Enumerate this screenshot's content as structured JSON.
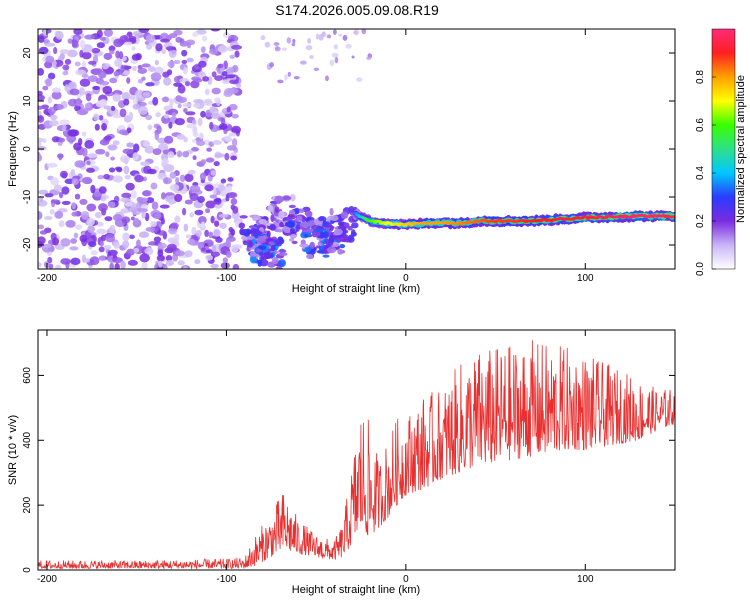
{
  "title": "S174.2026.005.09.08.R19",
  "chart_data": [
    {
      "type": "heatmap",
      "xlabel": "Height of straight line (km)",
      "ylabel": "Frequency (Hz)",
      "xlim": [
        -205,
        150
      ],
      "ylim": [
        -25,
        25
      ],
      "xticks": [
        -200,
        -100,
        0,
        100
      ],
      "yticks": [
        -20,
        -10,
        0,
        10,
        20
      ],
      "colorbar": {
        "label": "Normalized spectral amplitude",
        "range": [
          0,
          1
        ],
        "ticks": [
          "0.0",
          "0.2",
          "0.4",
          "0.6",
          "0.8"
        ],
        "tick_values": [
          0,
          0.2,
          0.4,
          0.6,
          0.8
        ],
        "colors": [
          "#ffffff",
          "#c9b5f5",
          "#7a2be0",
          "#2a3cff",
          "#00c8ff",
          "#2ee08a",
          "#38ff00",
          "#ffff00",
          "#ffa000",
          "#ff2020",
          "#ff2a7a"
        ]
      },
      "noise_region_x": [
        -205,
        -93
      ],
      "features": [
        {
          "x": -85,
          "y": -17.5,
          "amp": 0.25
        },
        {
          "x": -80,
          "y": -20,
          "amp": 0.3
        },
        {
          "x": -75,
          "y": -22,
          "amp": 0.3
        },
        {
          "x": -70,
          "y": -13.5,
          "amp": 0.2
        },
        {
          "x": -60,
          "y": -16,
          "amp": 0.25
        },
        {
          "x": -50,
          "y": -19,
          "amp": 0.3
        },
        {
          "x": -42,
          "y": -18,
          "amp": 0.28
        },
        {
          "x": -35,
          "y": -16,
          "amp": 0.25
        }
      ],
      "ridge": {
        "x": [
          -28,
          -20,
          -10,
          0,
          10,
          20,
          30,
          40,
          50,
          60,
          70,
          80,
          90,
          100,
          110,
          120,
          130,
          140,
          150
        ],
        "y": [
          -13.5,
          -15,
          -15.5,
          -15.8,
          -15.5,
          -15.3,
          -15.5,
          -15,
          -15,
          -15,
          -15,
          -14.8,
          -14.5,
          -14.3,
          -14.2,
          -14.1,
          -14,
          -14,
          -14
        ],
        "amp": [
          0.35,
          0.6,
          0.7,
          0.75,
          0.8,
          0.8,
          0.82,
          0.85,
          0.88,
          0.88,
          0.9,
          0.9,
          0.92,
          0.93,
          0.95,
          0.97,
          0.98,
          0.98,
          0.95
        ]
      }
    },
    {
      "type": "line",
      "xlabel": "Height of straight line (km)",
      "ylabel": "SNR (10 * v/v)",
      "xlim": [
        -205,
        150
      ],
      "ylim": [
        0,
        740
      ],
      "xticks": [
        -200,
        -100,
        0,
        100
      ],
      "yticks": [
        0,
        200,
        400,
        600
      ],
      "color": "#e83030",
      "envelope": {
        "x": [
          -205,
          -150,
          -100,
          -90,
          -85,
          -75,
          -68,
          -60,
          -50,
          -40,
          -35,
          -30,
          -25,
          -20,
          -15,
          -10,
          -5,
          0,
          10,
          20,
          30,
          40,
          50,
          60,
          70,
          80,
          90,
          100,
          110,
          120,
          130,
          140,
          150
        ],
        "low": [
          5,
          5,
          5,
          5,
          10,
          40,
          60,
          50,
          40,
          30,
          40,
          80,
          120,
          100,
          130,
          160,
          200,
          230,
          250,
          280,
          300,
          320,
          330,
          340,
          350,
          360,
          370,
          370,
          380,
          390,
          400,
          430,
          450
        ],
        "high": [
          30,
          30,
          35,
          40,
          100,
          180,
          250,
          160,
          110,
          90,
          150,
          330,
          520,
          450,
          340,
          410,
          470,
          480,
          540,
          560,
          640,
          680,
          690,
          700,
          710,
          700,
          690,
          670,
          640,
          620,
          590,
          560,
          560
        ]
      }
    }
  ]
}
